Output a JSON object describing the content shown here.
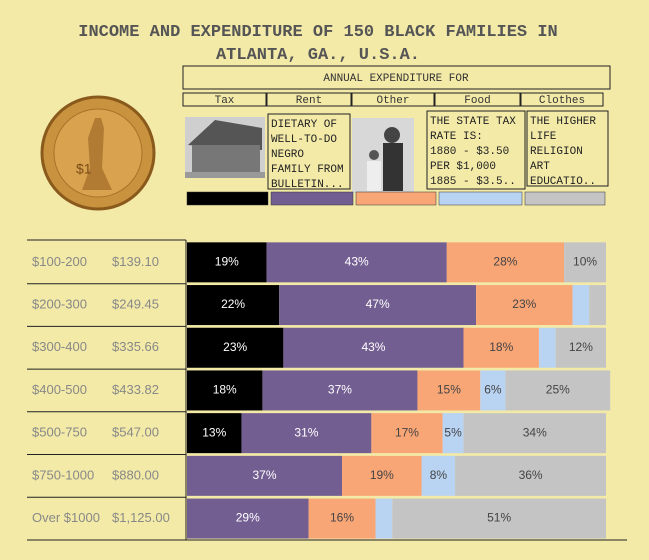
{
  "chart_data": {
    "type": "bar",
    "orientation": "horizontal",
    "stacked": true,
    "title": "INCOME AND EXPENDITURE OF 150 BLACK FAMILIES IN ATLANTA, GA., U.S.A.",
    "header": "ANNUAL EXPENDITURE FOR",
    "categories": [
      "$100-200",
      "$200-300",
      "$300-400",
      "$400-500",
      "$500-750",
      "$750-1000",
      "Over $1000"
    ],
    "income": [
      "$139.10",
      "$249.45",
      "$335.66",
      "$433.82",
      "$547.00",
      "$880.00",
      "$1,125.00"
    ],
    "xlim": [
      0,
      100
    ],
    "series": [
      {
        "name": "Tax",
        "color": "#000000",
        "values": [
          19,
          22,
          23,
          18,
          13,
          0,
          0
        ],
        "value_labels": [
          "19%",
          "22%",
          "23%",
          "18%",
          "13%",
          null,
          null
        ]
      },
      {
        "name": "Rent",
        "color": "#735e92",
        "values": [
          43,
          47,
          43,
          37,
          31,
          37,
          29
        ],
        "value_labels": [
          "43%",
          "47%",
          "43%",
          "37%",
          "31%",
          "37%",
          "29%"
        ]
      },
      {
        "name": "Other",
        "color": "#f9a677",
        "values": [
          28,
          23,
          18,
          15,
          17,
          19,
          16
        ],
        "value_labels": [
          "28%",
          "23%",
          "18%",
          "15%",
          "17%",
          "19%",
          "16%"
        ]
      },
      {
        "name": "Food",
        "color": "#b9d3f3",
        "values": [
          0,
          4,
          4,
          6,
          5,
          8,
          4
        ],
        "value_labels": [
          null,
          null,
          null,
          "6%",
          "5%",
          "8%",
          null
        ]
      },
      {
        "name": "Clothes",
        "color": "#c4c4c4",
        "values": [
          10,
          4,
          12,
          25,
          34,
          36,
          51
        ],
        "value_labels": [
          "10%",
          null,
          "12%",
          "25%",
          "34%",
          "36%",
          "51%"
        ]
      }
    ],
    "annotations": [
      {
        "lines": [
          "DIETARY OF",
          "WELL-TO-DO",
          "NEGRO",
          "FAMILY FROM",
          "BULLETIN..."
        ]
      },
      {
        "lines": [
          "THE STATE TAX",
          "RATE IS:",
          "1880 - $3.50",
          "PER $1,000",
          "1885 - $3.5.."
        ]
      },
      {
        "lines": [
          "THE HIGHER",
          "LIFE",
          "RELIGION",
          "ART",
          "EDUCATIO.."
        ]
      }
    ]
  }
}
